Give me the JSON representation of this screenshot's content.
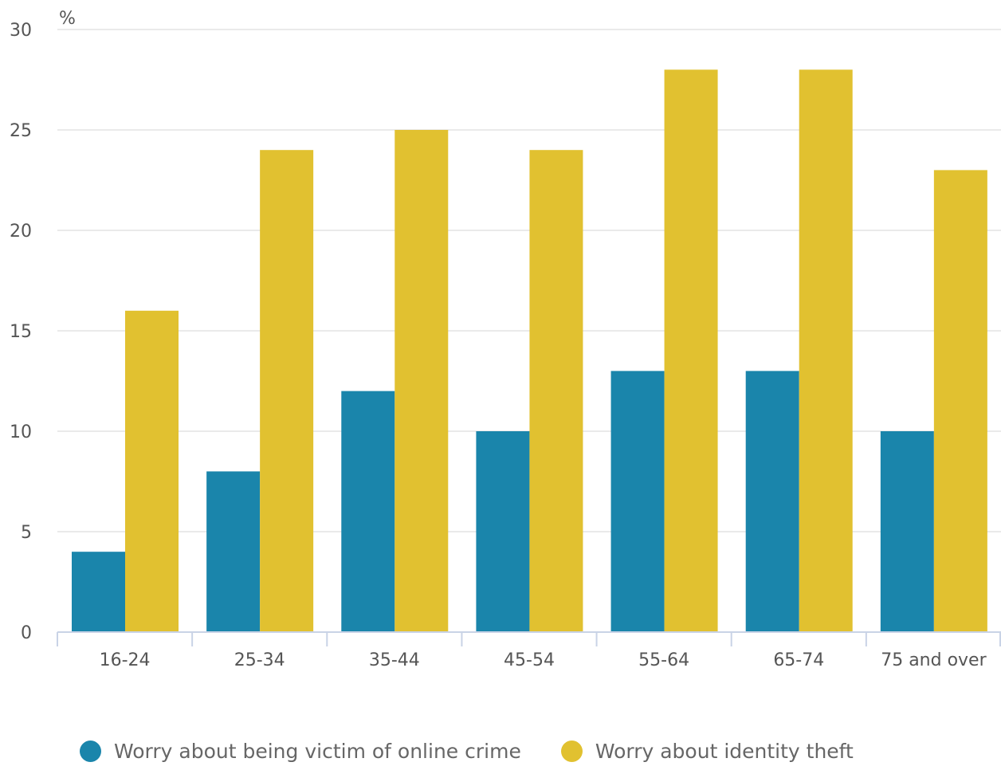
{
  "chart_data": {
    "type": "bar",
    "ylabel": "%",
    "ylim": [
      0,
      30
    ],
    "yticks": [
      0,
      5,
      10,
      15,
      20,
      25,
      30
    ],
    "categories": [
      "16-24",
      "25-34",
      "35-44",
      "45-54",
      "55-64",
      "65-74",
      "75 and over"
    ],
    "series": [
      {
        "name": "Worry about being victim of online crime",
        "color": "#1a85ab",
        "values": [
          4,
          8,
          12,
          10,
          13,
          13,
          10
        ]
      },
      {
        "name": "Worry about identity theft",
        "color": "#e1c130",
        "values": [
          16,
          24,
          25,
          24,
          28,
          28,
          23
        ]
      }
    ],
    "grid": true,
    "legend_position": "bottom"
  }
}
